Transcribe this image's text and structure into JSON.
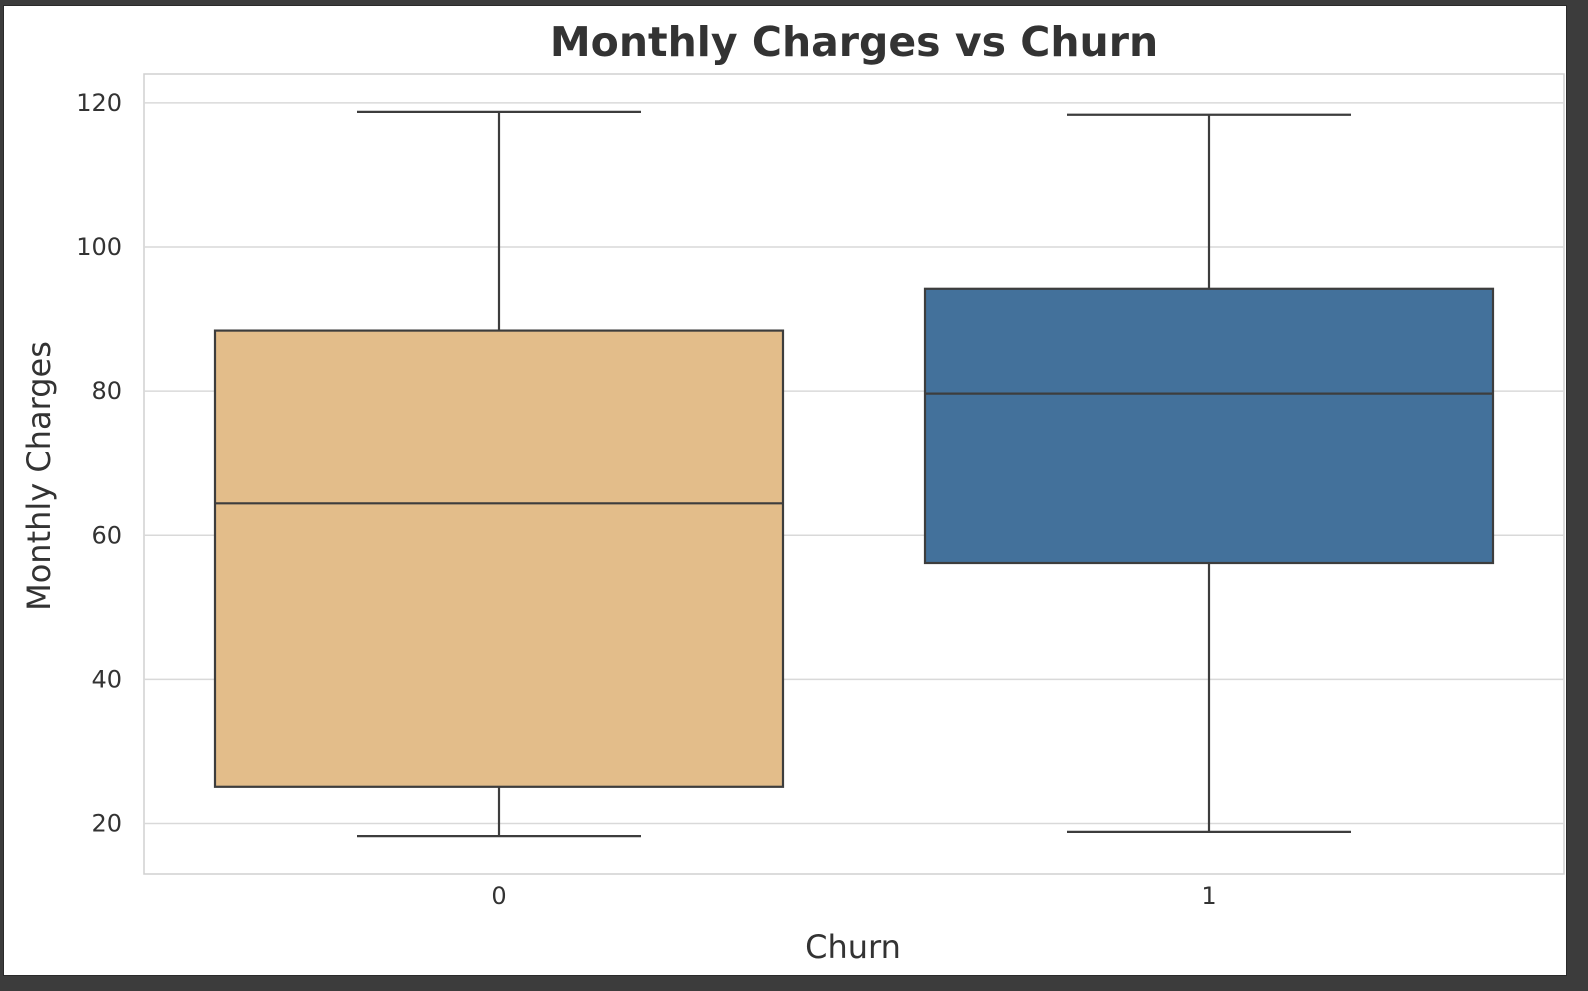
{
  "chart_data": {
    "type": "box",
    "title": "Monthly Charges vs Churn",
    "xlabel": "Churn",
    "ylabel": "Monthly Charges",
    "ylim": [
      13,
      124
    ],
    "yticks": [
      20,
      40,
      60,
      80,
      100,
      120
    ],
    "grid": true,
    "categories": [
      "0",
      "1"
    ],
    "boxes": [
      {
        "category": "0",
        "min": 18.25,
        "q1": 25.1,
        "median": 64.43,
        "q3": 88.4,
        "max": 118.75,
        "color": "#e3bd8a"
      },
      {
        "category": "1",
        "min": 18.85,
        "q1": 56.15,
        "median": 79.65,
        "q3": 94.2,
        "max": 118.35,
        "color": "#43719b"
      }
    ]
  }
}
